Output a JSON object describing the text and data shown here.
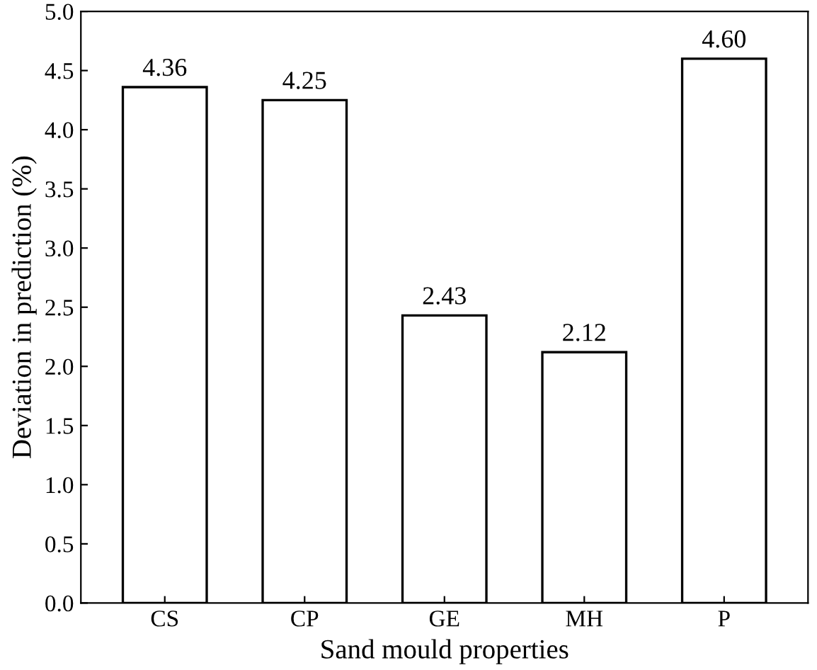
{
  "chart_data": {
    "type": "bar",
    "xlabel": "Sand mould properties",
    "ylabel": "Deviation in prediction (%)",
    "categories": [
      "CS",
      "CP",
      "GE",
      "MH",
      "P"
    ],
    "values": [
      4.36,
      4.25,
      2.43,
      2.12,
      4.6
    ],
    "value_labels": [
      "4.36",
      "4.25",
      "2.43",
      "2.12",
      "4.60"
    ],
    "color": "#ffffff",
    "ylim": [
      0,
      5
    ],
    "yticks": [
      {
        "value": 0,
        "label": "0.0"
      },
      {
        "value": 0.5,
        "label": "0.5"
      },
      {
        "value": 1,
        "label": "1.0"
      },
      {
        "value": 1.5,
        "label": "1.5"
      },
      {
        "value": 2,
        "label": "2.0"
      },
      {
        "value": 2.5,
        "label": "2.5"
      },
      {
        "value": 3,
        "label": "3.0"
      },
      {
        "value": 3.5,
        "label": "3.5"
      },
      {
        "value": 4,
        "label": "4.0"
      },
      {
        "value": 4.5,
        "label": "4.5"
      },
      {
        "value": 5,
        "label": "5.0"
      }
    ],
    "grid": false,
    "legend": false
  }
}
